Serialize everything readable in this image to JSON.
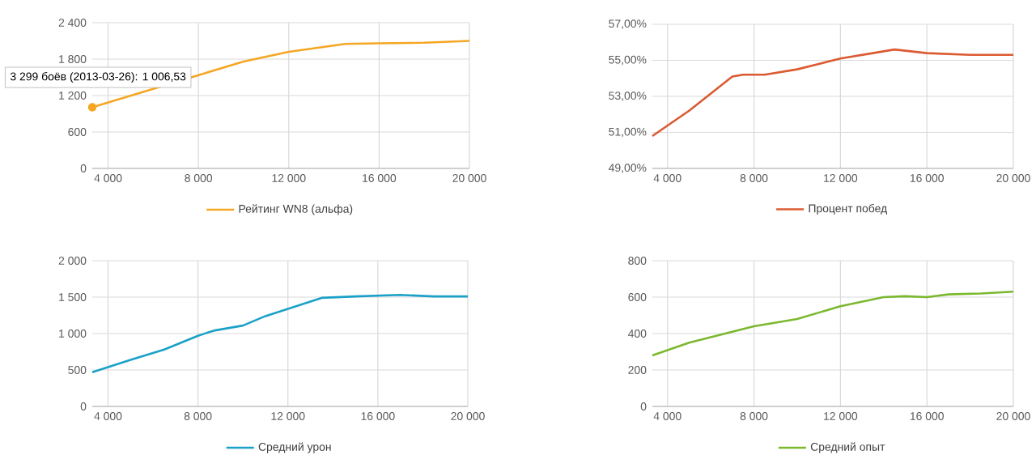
{
  "chart_data": [
    {
      "type": "line",
      "x": [
        3299,
        10000,
        12000,
        14500,
        16000,
        18000,
        20000
      ],
      "series": [
        {
          "name": "Рейтинг WN8 (альфа)",
          "color": "#f5a623",
          "values": [
            1006.53,
            1760,
            1920,
            2050,
            2060,
            2070,
            2100
          ]
        }
      ],
      "xlim": [
        3299,
        20000
      ],
      "xticks": [
        {
          "value": 4000,
          "label": "4 000"
        },
        {
          "value": 8000,
          "label": "8 000"
        },
        {
          "value": 12000,
          "label": "12 000"
        },
        {
          "value": 16000,
          "label": "16 000"
        },
        {
          "value": 20000,
          "label": "20 000"
        }
      ],
      "ylim": [
        0,
        2400
      ],
      "yticks": [
        0,
        600,
        {
          "value": 1200,
          "label": "1 200"
        },
        {
          "value": 1800,
          "label": "1 800"
        },
        {
          "value": 2400,
          "label": "2 400"
        }
      ],
      "grid": true,
      "legend": "bottom",
      "annotations": [
        {
          "text": "3 299 боёв (2013-03-26): 1 006,53",
          "x": 3299,
          "y": 1006.53
        }
      ]
    },
    {
      "type": "line",
      "x": [
        3299,
        5000,
        7000,
        7500,
        8500,
        10000,
        11000,
        12000,
        13500,
        14500,
        16000,
        18000,
        20000
      ],
      "series": [
        {
          "name": "Процент побед",
          "color": "#dc5a31",
          "values": [
            50.8,
            52.2,
            54.1,
            54.2,
            54.2,
            54.5,
            54.8,
            55.1,
            55.4,
            55.6,
            55.4,
            55.3,
            55.3
          ]
        }
      ],
      "xlim": [
        3299,
        20000
      ],
      "xticks": [
        {
          "value": 4000,
          "label": "4 000"
        },
        {
          "value": 8000,
          "label": "8 000"
        },
        {
          "value": 12000,
          "label": "12 000"
        },
        {
          "value": 16000,
          "label": "16 000"
        },
        {
          "value": 20000,
          "label": "20 000"
        }
      ],
      "ylim": [
        49,
        57
      ],
      "yticks": [
        {
          "value": 49,
          "label": "49,00%"
        },
        {
          "value": 51,
          "label": "51,00%"
        },
        {
          "value": 53,
          "label": "53,00%"
        },
        {
          "value": 55,
          "label": "55,00%"
        },
        {
          "value": 57,
          "label": "57,00%"
        }
      ],
      "grid": true,
      "legend": "bottom"
    },
    {
      "type": "line",
      "x": [
        3299,
        5000,
        6500,
        8000,
        8700,
        10000,
        11000,
        12000,
        13500,
        15000,
        17000,
        18500,
        20000
      ],
      "series": [
        {
          "name": "Средний урон",
          "color": "#1ba1c8",
          "values": [
            470,
            640,
            780,
            970,
            1040,
            1110,
            1240,
            1340,
            1490,
            1510,
            1530,
            1510,
            1510
          ]
        }
      ],
      "xlim": [
        3299,
        20000
      ],
      "xticks": [
        {
          "value": 4000,
          "label": "4 000"
        },
        {
          "value": 8000,
          "label": "8 000"
        },
        {
          "value": 12000,
          "label": "12 000"
        },
        {
          "value": 16000,
          "label": "16 000"
        },
        {
          "value": 20000,
          "label": "20 000"
        }
      ],
      "ylim": [
        0,
        2000
      ],
      "yticks": [
        0,
        500,
        {
          "value": 1000,
          "label": "1 000"
        },
        {
          "value": 1500,
          "label": "1 500"
        },
        {
          "value": 2000,
          "label": "2 000"
        }
      ],
      "grid": true,
      "legend": "bottom"
    },
    {
      "type": "line",
      "x": [
        3299,
        5000,
        7000,
        8000,
        10000,
        12000,
        14000,
        15000,
        16000,
        17000,
        18500,
        20000
      ],
      "series": [
        {
          "name": "Средний опыт",
          "color": "#7cb82f",
          "values": [
            280,
            350,
            410,
            440,
            480,
            550,
            600,
            605,
            600,
            615,
            620,
            630
          ]
        }
      ],
      "xlim": [
        3299,
        20000
      ],
      "xticks": [
        {
          "value": 4000,
          "label": "4 000"
        },
        {
          "value": 8000,
          "label": "8 000"
        },
        {
          "value": 12000,
          "label": "12 000"
        },
        {
          "value": 16000,
          "label": "16 000"
        },
        {
          "value": 20000,
          "label": "20 000"
        }
      ],
      "ylim": [
        0,
        800
      ],
      "yticks": [
        0,
        200,
        400,
        600,
        800
      ],
      "grid": true,
      "legend": "bottom"
    }
  ]
}
